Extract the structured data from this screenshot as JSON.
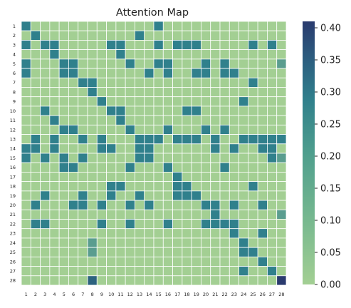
{
  "chart_data": {
    "type": "heatmap",
    "title": "Attention Map",
    "x_labels": [
      "1",
      "2",
      "3",
      "4",
      "5",
      "6",
      "7",
      "8",
      "9",
      "10",
      "11",
      "12",
      "13",
      "14",
      "15",
      "16",
      "17",
      "18",
      "19",
      "20",
      "21",
      "22",
      "23",
      "24",
      "25",
      "26",
      "27",
      "28"
    ],
    "y_labels": [
      "1",
      "2",
      "3",
      "4",
      "5",
      "6",
      "7",
      "8",
      "9",
      "10",
      "11",
      "12",
      "13",
      "14",
      "15",
      "16",
      "17",
      "18",
      "19",
      "20",
      "21",
      "22",
      "23",
      "24",
      "25",
      "26",
      "27",
      "28"
    ],
    "colorbar": {
      "range": [
        0.0,
        0.41
      ],
      "ticks": [
        "0.00",
        "0.05",
        "0.10",
        "0.15",
        "0.20",
        "0.25",
        "0.30",
        "0.35",
        "0.40"
      ],
      "tick_values": [
        0,
        0.05,
        0.1,
        0.15,
        0.2,
        0.25,
        0.3,
        0.35,
        0.4
      ]
    },
    "colors": [
      "#a3cf93",
      "#30808c",
      "#2a3b6e"
    ],
    "values": [
      [
        0.22,
        0,
        0,
        0,
        0,
        0,
        0,
        0,
        0,
        0,
        0,
        0,
        0,
        0,
        0.22,
        0,
        0,
        0,
        0,
        0,
        0,
        0,
        0,
        0,
        0,
        0,
        0,
        0
      ],
      [
        0,
        0.22,
        0,
        0,
        0,
        0,
        0,
        0,
        0,
        0,
        0,
        0,
        0.22,
        0,
        0,
        0,
        0,
        0,
        0,
        0,
        0,
        0,
        0,
        0,
        0,
        0,
        0,
        0
      ],
      [
        0.22,
        0,
        0.22,
        0.22,
        0,
        0,
        0,
        0,
        0,
        0.22,
        0.22,
        0,
        0,
        0,
        0.22,
        0,
        0.22,
        0.22,
        0.22,
        0,
        0,
        0,
        0,
        0,
        0.22,
        0,
        0.22,
        0
      ],
      [
        0,
        0,
        0,
        0.22,
        0,
        0,
        0,
        0,
        0,
        0,
        0.22,
        0,
        0,
        0,
        0,
        0,
        0,
        0,
        0,
        0,
        0,
        0,
        0,
        0,
        0,
        0,
        0,
        0
      ],
      [
        0.22,
        0,
        0,
        0,
        0.22,
        0.22,
        0,
        0,
        0,
        0,
        0,
        0.22,
        0,
        0,
        0.22,
        0.22,
        0,
        0,
        0,
        0.22,
        0,
        0.22,
        0,
        0,
        0,
        0,
        0,
        0.14
      ],
      [
        0.22,
        0,
        0,
        0,
        0.22,
        0.22,
        0,
        0,
        0,
        0,
        0,
        0,
        0,
        0.22,
        0,
        0.22,
        0,
        0,
        0.22,
        0.22,
        0,
        0.22,
        0.22,
        0,
        0,
        0,
        0,
        0
      ],
      [
        0,
        0,
        0,
        0,
        0,
        0,
        0.22,
        0.22,
        0,
        0,
        0,
        0,
        0,
        0,
        0,
        0,
        0,
        0,
        0,
        0,
        0,
        0,
        0,
        0,
        0.22,
        0,
        0,
        0
      ],
      [
        0,
        0,
        0,
        0,
        0,
        0,
        0,
        0.22,
        0,
        0,
        0,
        0,
        0,
        0,
        0,
        0,
        0,
        0,
        0,
        0,
        0,
        0,
        0,
        0,
        0,
        0,
        0,
        0
      ],
      [
        0,
        0,
        0,
        0,
        0,
        0,
        0,
        0,
        0.22,
        0,
        0,
        0,
        0,
        0,
        0,
        0,
        0,
        0,
        0,
        0,
        0,
        0,
        0,
        0.22,
        0,
        0,
        0,
        0
      ],
      [
        0,
        0,
        0.22,
        0,
        0,
        0,
        0,
        0,
        0,
        0.22,
        0.22,
        0,
        0,
        0,
        0,
        0,
        0,
        0.22,
        0.22,
        0,
        0,
        0,
        0,
        0,
        0,
        0,
        0,
        0
      ],
      [
        0,
        0,
        0,
        0.22,
        0,
        0,
        0,
        0,
        0,
        0,
        0.22,
        0,
        0,
        0,
        0,
        0,
        0,
        0,
        0,
        0,
        0,
        0,
        0,
        0,
        0,
        0,
        0,
        0
      ],
      [
        0,
        0,
        0,
        0,
        0.22,
        0.22,
        0,
        0,
        0,
        0,
        0,
        0.22,
        0,
        0,
        0,
        0.22,
        0,
        0,
        0,
        0.22,
        0,
        0.22,
        0,
        0,
        0,
        0,
        0,
        0
      ],
      [
        0,
        0.22,
        0,
        0.22,
        0,
        0,
        0.22,
        0,
        0.22,
        0,
        0,
        0,
        0.22,
        0.22,
        0.22,
        0,
        0.22,
        0.22,
        0.22,
        0,
        0.22,
        0,
        0,
        0.22,
        0.22,
        0.22,
        0.22,
        0.22
      ],
      [
        0.22,
        0.22,
        0,
        0.22,
        0,
        0,
        0,
        0,
        0.22,
        0.22,
        0,
        0,
        0.22,
        0.22,
        0,
        0,
        0,
        0,
        0,
        0,
        0.22,
        0,
        0.22,
        0,
        0,
        0.22,
        0.22,
        0
      ],
      [
        0.22,
        0,
        0.22,
        0,
        0.22,
        0,
        0.22,
        0,
        0,
        0,
        0,
        0,
        0.22,
        0.22,
        0,
        0,
        0,
        0,
        0,
        0,
        0,
        0,
        0,
        0,
        0,
        0,
        0.22,
        0.14
      ],
      [
        0,
        0,
        0,
        0,
        0.22,
        0.22,
        0,
        0,
        0,
        0,
        0,
        0.22,
        0,
        0,
        0,
        0.22,
        0,
        0,
        0,
        0,
        0,
        0.22,
        0,
        0,
        0,
        0,
        0,
        0
      ],
      [
        0,
        0,
        0,
        0,
        0,
        0,
        0,
        0,
        0,
        0,
        0,
        0,
        0,
        0,
        0,
        0,
        0.22,
        0,
        0,
        0,
        0,
        0,
        0,
        0,
        0,
        0,
        0,
        0
      ],
      [
        0,
        0,
        0,
        0,
        0,
        0,
        0,
        0,
        0,
        0.22,
        0.22,
        0,
        0,
        0,
        0,
        0,
        0.22,
        0.22,
        0,
        0,
        0,
        0,
        0,
        0,
        0.22,
        0,
        0,
        0
      ],
      [
        0,
        0,
        0.22,
        0,
        0,
        0,
        0.22,
        0,
        0,
        0.22,
        0,
        0,
        0.22,
        0,
        0,
        0,
        0.22,
        0.22,
        0.22,
        0,
        0,
        0,
        0,
        0,
        0,
        0,
        0,
        0
      ],
      [
        0,
        0.22,
        0,
        0,
        0,
        0.22,
        0.22,
        0,
        0.22,
        0,
        0,
        0.22,
        0,
        0.22,
        0,
        0,
        0,
        0,
        0,
        0.22,
        0.22,
        0,
        0.22,
        0,
        0,
        0.22,
        0,
        0
      ],
      [
        0,
        0,
        0,
        0,
        0,
        0,
        0,
        0,
        0,
        0,
        0,
        0,
        0,
        0,
        0,
        0,
        0,
        0,
        0,
        0,
        0.22,
        0,
        0,
        0,
        0,
        0,
        0,
        0.14
      ],
      [
        0,
        0.22,
        0.22,
        0,
        0,
        0,
        0,
        0,
        0.22,
        0,
        0,
        0.22,
        0,
        0,
        0,
        0.22,
        0,
        0,
        0,
        0.22,
        0.22,
        0.22,
        0.22,
        0,
        0,
        0,
        0,
        0
      ],
      [
        0,
        0,
        0,
        0,
        0,
        0,
        0,
        0,
        0,
        0,
        0,
        0,
        0,
        0,
        0,
        0,
        0,
        0,
        0,
        0,
        0,
        0,
        0.22,
        0,
        0,
        0.22,
        0,
        0
      ],
      [
        0,
        0,
        0,
        0,
        0,
        0,
        0,
        0.14,
        0,
        0,
        0,
        0,
        0,
        0,
        0,
        0,
        0,
        0,
        0,
        0,
        0,
        0,
        0,
        0.22,
        0,
        0,
        0,
        0
      ],
      [
        0,
        0,
        0,
        0,
        0,
        0,
        0,
        0.14,
        0,
        0,
        0,
        0,
        0,
        0,
        0,
        0,
        0,
        0,
        0,
        0,
        0,
        0,
        0,
        0.22,
        0.22,
        0,
        0,
        0
      ],
      [
        0,
        0,
        0,
        0,
        0,
        0,
        0,
        0,
        0,
        0,
        0,
        0,
        0,
        0,
        0,
        0,
        0,
        0,
        0,
        0,
        0,
        0,
        0,
        0,
        0,
        0.22,
        0,
        0
      ],
      [
        0,
        0,
        0,
        0,
        0,
        0,
        0,
        0,
        0,
        0,
        0,
        0,
        0,
        0,
        0,
        0,
        0,
        0,
        0,
        0,
        0,
        0,
        0,
        0.22,
        0,
        0,
        0.22,
        0
      ],
      [
        0,
        0,
        0,
        0,
        0,
        0,
        0,
        0.3,
        0,
        0,
        0,
        0,
        0,
        0,
        0,
        0,
        0,
        0,
        0,
        0,
        0,
        0,
        0,
        0,
        0,
        0,
        0,
        0.41
      ]
    ]
  }
}
